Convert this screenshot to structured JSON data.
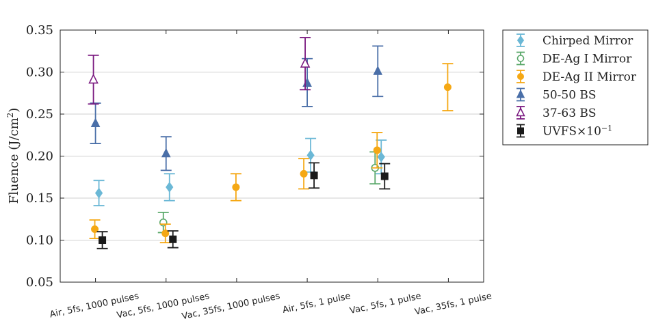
{
  "chart_data": {
    "type": "scatter",
    "title": "",
    "xlabel": "",
    "ylabel": "Fluence (J/cm²)",
    "ylabel_main": "Fluence (J/cm",
    "ylabel_sup": "2",
    "ylabel_close": ")",
    "ylim": [
      0.05,
      0.35
    ],
    "yticks": [
      0.05,
      0.1,
      0.15,
      0.2,
      0.25,
      0.3,
      0.35
    ],
    "ytick_labels": [
      "0.05",
      "0.10",
      "0.15",
      "0.20",
      "0.25",
      "0.30",
      "0.35"
    ],
    "grid": true,
    "legend_position": "outside-right",
    "categories": [
      "Air, 5fs, 1000 pulses",
      "Vac, 5fs, 1000 pulses",
      "Vac, 35fs, 1000 pulses",
      "Air, 5fs, 1 pulse",
      "Vac, 5fs, 1 pulse",
      "Vac, 35fs, 1 pulse"
    ],
    "series": [
      {
        "name": "Chirped Mirror",
        "color": "#6bb8d6",
        "marker": "diamond",
        "filled": true,
        "points": [
          {
            "category": 0,
            "y": 0.156,
            "err_low": 0.141,
            "err_high": 0.171
          },
          {
            "category": 1,
            "y": 0.163,
            "err_low": 0.147,
            "err_high": 0.179
          },
          {
            "category": 3,
            "y": 0.201,
            "err_low": 0.181,
            "err_high": 0.221
          },
          {
            "category": 4,
            "y": 0.199,
            "err_low": 0.179,
            "err_high": 0.219
          }
        ]
      },
      {
        "name": "DE-Ag I Mirror",
        "color": "#5aa86a",
        "marker": "circle",
        "filled": false,
        "points": [
          {
            "category": 1,
            "y": 0.121,
            "err_low": 0.109,
            "err_high": 0.133
          },
          {
            "category": 4,
            "y": 0.186,
            "err_low": 0.167,
            "err_high": 0.205
          }
        ]
      },
      {
        "name": "DE-Ag II Mirror",
        "color": "#f5a814",
        "marker": "circle",
        "filled": true,
        "points": [
          {
            "category": 0,
            "y": 0.113,
            "err_low": 0.102,
            "err_high": 0.124
          },
          {
            "category": 1,
            "y": 0.108,
            "err_low": 0.097,
            "err_high": 0.119
          },
          {
            "category": 2,
            "y": 0.163,
            "err_low": 0.147,
            "err_high": 0.179
          },
          {
            "category": 3,
            "y": 0.179,
            "err_low": 0.161,
            "err_high": 0.197
          },
          {
            "category": 4,
            "y": 0.207,
            "err_low": 0.186,
            "err_high": 0.228
          },
          {
            "category": 5,
            "y": 0.282,
            "err_low": 0.254,
            "err_high": 0.31
          }
        ]
      },
      {
        "name": "50-50 BS",
        "color": "#4a6fa8",
        "marker": "triangle",
        "filled": true,
        "points": [
          {
            "category": 0,
            "y": 0.239,
            "err_low": 0.215,
            "err_high": 0.263
          },
          {
            "category": 1,
            "y": 0.203,
            "err_low": 0.183,
            "err_high": 0.223
          },
          {
            "category": 3,
            "y": 0.287,
            "err_low": 0.259,
            "err_high": 0.316
          },
          {
            "category": 4,
            "y": 0.301,
            "err_low": 0.271,
            "err_high": 0.331
          }
        ]
      },
      {
        "name": "37-63 BS",
        "color": "#7b1a80",
        "marker": "triangle",
        "filled": false,
        "points": [
          {
            "category": 0,
            "y": 0.291,
            "err_low": 0.262,
            "err_high": 0.32
          },
          {
            "category": 3,
            "y": 0.31,
            "err_low": 0.279,
            "err_high": 0.341
          }
        ]
      },
      {
        "name": "UVFS×10⁻¹",
        "legend_main": "UVFS×10",
        "legend_sup": "−1",
        "color": "#1a1a1a",
        "marker": "square",
        "filled": true,
        "points": [
          {
            "category": 0,
            "y": 0.1,
            "err_low": 0.09,
            "err_high": 0.11
          },
          {
            "category": 1,
            "y": 0.101,
            "err_low": 0.091,
            "err_high": 0.111
          },
          {
            "category": 3,
            "y": 0.177,
            "err_low": 0.162,
            "err_high": 0.192
          },
          {
            "category": 4,
            "y": 0.176,
            "err_low": 0.161,
            "err_high": 0.191
          }
        ]
      }
    ]
  }
}
